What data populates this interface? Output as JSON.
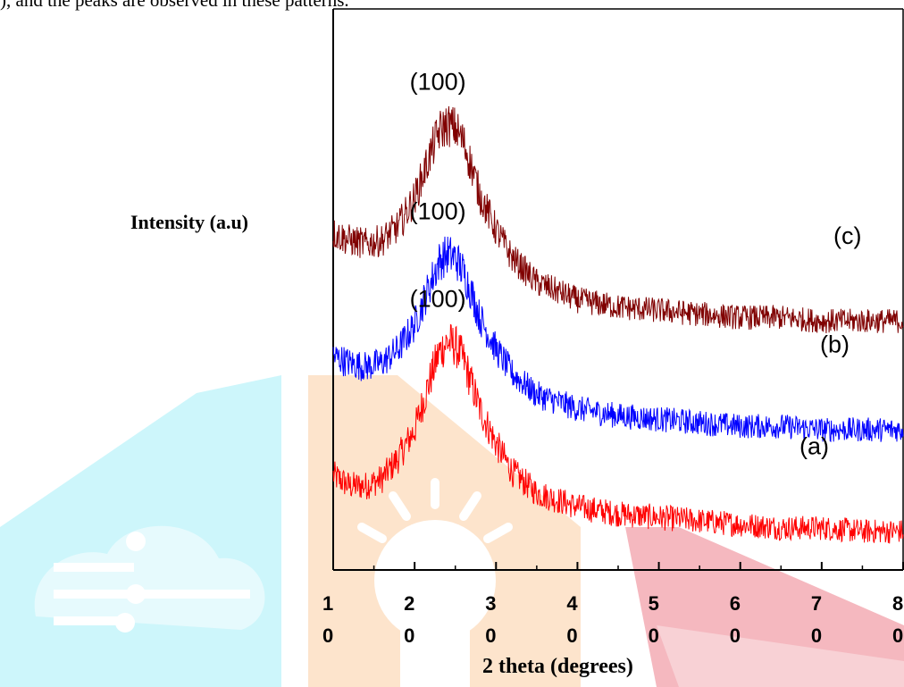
{
  "caption_fragment": "), and the peaks are observed in these patterns.",
  "watermark": {
    "colors": {
      "cyan": "#cdf6fb",
      "cyan_light": "#e6fafd",
      "orange": "#fde4cc",
      "red": "#f5b8bf"
    },
    "icons": [
      "cloud-circuit-icon",
      "lightbulb-icon",
      "book-icon"
    ]
  },
  "chart_data": {
    "type": "line",
    "title": "",
    "xlabel": "2 theta (degrees)",
    "ylabel": "Intensity (a.u)",
    "xlim": [
      10,
      80
    ],
    "x_ticks": [
      {
        "value": 10,
        "top": "1",
        "bottom": "0"
      },
      {
        "value": 20,
        "top": "2",
        "bottom": "0"
      },
      {
        "value": 30,
        "top": "3",
        "bottom": "0"
      },
      {
        "value": 40,
        "top": "4",
        "bottom": "0"
      },
      {
        "value": 50,
        "top": "5",
        "bottom": "0"
      },
      {
        "value": 60,
        "top": "6",
        "bottom": "0"
      },
      {
        "value": 70,
        "top": "7",
        "bottom": "0"
      },
      {
        "value": 80,
        "top": "8",
        "bottom": "0"
      }
    ],
    "grid": false,
    "series": [
      {
        "name": "(a)",
        "color": "#ff0000",
        "peak_label": "(100)",
        "points": [
          [
            10,
            0.27
          ],
          [
            12,
            0.24
          ],
          [
            14,
            0.24
          ],
          [
            16,
            0.26
          ],
          [
            18,
            0.32
          ],
          [
            20,
            0.4
          ],
          [
            22,
            0.55
          ],
          [
            23,
            0.62
          ],
          [
            24,
            0.65
          ],
          [
            25,
            0.64
          ],
          [
            26,
            0.6
          ],
          [
            27,
            0.53
          ],
          [
            28,
            0.46
          ],
          [
            30,
            0.36
          ],
          [
            32,
            0.28
          ],
          [
            35,
            0.22
          ],
          [
            40,
            0.18
          ],
          [
            45,
            0.16
          ],
          [
            50,
            0.15
          ],
          [
            55,
            0.14
          ],
          [
            60,
            0.13
          ],
          [
            65,
            0.12
          ],
          [
            70,
            0.12
          ],
          [
            75,
            0.11
          ],
          [
            80,
            0.11
          ]
        ]
      },
      {
        "name": "(b)",
        "color": "#0000ff",
        "peak_label": "(100)",
        "points": [
          [
            10,
            0.61
          ],
          [
            12,
            0.59
          ],
          [
            14,
            0.58
          ],
          [
            16,
            0.59
          ],
          [
            18,
            0.63
          ],
          [
            20,
            0.7
          ],
          [
            22,
            0.82
          ],
          [
            23,
            0.88
          ],
          [
            24,
            0.9
          ],
          [
            25,
            0.89
          ],
          [
            26,
            0.85
          ],
          [
            27,
            0.79
          ],
          [
            28,
            0.72
          ],
          [
            30,
            0.63
          ],
          [
            32,
            0.56
          ],
          [
            35,
            0.5
          ],
          [
            40,
            0.46
          ],
          [
            45,
            0.44
          ],
          [
            50,
            0.43
          ],
          [
            55,
            0.42
          ],
          [
            60,
            0.41
          ],
          [
            65,
            0.41
          ],
          [
            70,
            0.4
          ],
          [
            75,
            0.4
          ],
          [
            80,
            0.4
          ]
        ]
      },
      {
        "name": "(c)",
        "color": "#800000",
        "peak_label": "(100)",
        "points": [
          [
            10,
            0.96
          ],
          [
            12,
            0.94
          ],
          [
            14,
            0.93
          ],
          [
            16,
            0.94
          ],
          [
            18,
            0.98
          ],
          [
            20,
            1.06
          ],
          [
            22,
            1.19
          ],
          [
            23,
            1.25
          ],
          [
            24,
            1.27
          ],
          [
            25,
            1.26
          ],
          [
            26,
            1.22
          ],
          [
            27,
            1.15
          ],
          [
            28,
            1.07
          ],
          [
            30,
            0.97
          ],
          [
            32,
            0.89
          ],
          [
            35,
            0.82
          ],
          [
            40,
            0.77
          ],
          [
            45,
            0.75
          ],
          [
            50,
            0.74
          ],
          [
            55,
            0.73
          ],
          [
            60,
            0.72
          ],
          [
            65,
            0.72
          ],
          [
            70,
            0.71
          ],
          [
            75,
            0.71
          ],
          [
            80,
            0.71
          ]
        ]
      }
    ]
  }
}
